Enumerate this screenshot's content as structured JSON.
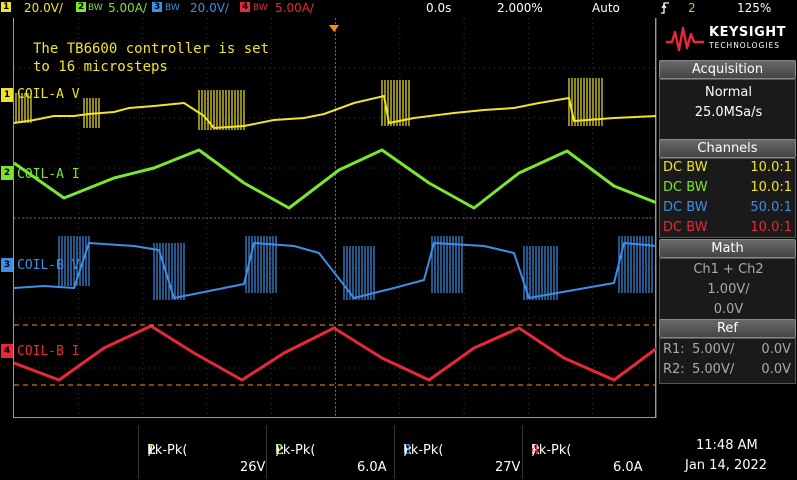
{
  "topbar": {
    "ch1_scale": "20.0V/",
    "ch2_scale": "5.00A/",
    "ch3_scale": "20.0V/",
    "ch4_scale": "5.00A/",
    "bw_label": "BW",
    "time_offset": "0.0s",
    "time_scale": "2.000%",
    "trigger_mode": "Auto",
    "trigger_channel": "2",
    "zoom": "125%"
  },
  "screen": {
    "note_line1": "The TB6600 controller is set",
    "note_line2": "to 16 microsteps",
    "ch1_label": "COIL-A V",
    "ch2_label": "COIL-A I",
    "ch3_label": "COIL-B V",
    "ch4_label": "COIL-B I",
    "marker1": "1",
    "marker2": "2",
    "marker3": "3",
    "marker4": "4"
  },
  "sidebar": {
    "logo_line1": "KEYSIGHT",
    "logo_line2": "TECHNOLOGIES",
    "acq_header": "Acquisition",
    "acq_mode": "Normal",
    "acq_rate": "25.0MSa/s",
    "channels_header": "Channels",
    "channels": [
      {
        "coupling": "DC",
        "bw": "BW",
        "ratio": "10.0:1",
        "color": "#f0e42a"
      },
      {
        "coupling": "DC",
        "bw": "BW",
        "ratio": "10.0:1",
        "color": "#7ae62f"
      },
      {
        "coupling": "DC",
        "bw": "BW",
        "ratio": "50.0:1",
        "color": "#3d8fe6"
      },
      {
        "coupling": "DC",
        "bw": "BW",
        "ratio": "10.0:1",
        "color": "#e8283a"
      }
    ],
    "math_header": "Math",
    "math_expr": "Ch1 + Ch2",
    "math_scale": "1.00V/",
    "math_offset": "0.0V",
    "ref_header": "Ref",
    "ref1_name": "R1:",
    "ref1_scale": "5.00V/",
    "ref1_offset": "0.0V",
    "ref2_name": "R2:",
    "ref2_scale": "5.00V/",
    "ref2_offset": "0.0V"
  },
  "measurements": [
    {
      "label": "Pk-Pk(",
      "ch": "1",
      "suffix": "):",
      "value": "26V",
      "color": "#f0e42a"
    },
    {
      "label": "Pk-Pk(",
      "ch": "2",
      "suffix": "):",
      "value": "6.0A",
      "color": "#7ae62f"
    },
    {
      "label": "Pk-Pk(",
      "ch": "3",
      "suffix": "):",
      "value": "27V",
      "color": "#3d8fe6"
    },
    {
      "label": "Pk-Pk(",
      "ch": "4",
      "suffix": "):",
      "value": "6.0A",
      "color": "#e8283a"
    }
  ],
  "clock": {
    "time": "11:48 AM",
    "date": "Jan 14, 2022"
  },
  "colors": {
    "ch1": "#f0e42a",
    "ch2": "#7ae62f",
    "ch3": "#3d8fe6",
    "ch4": "#e8283a",
    "trigger": "#ff8c1a"
  }
}
